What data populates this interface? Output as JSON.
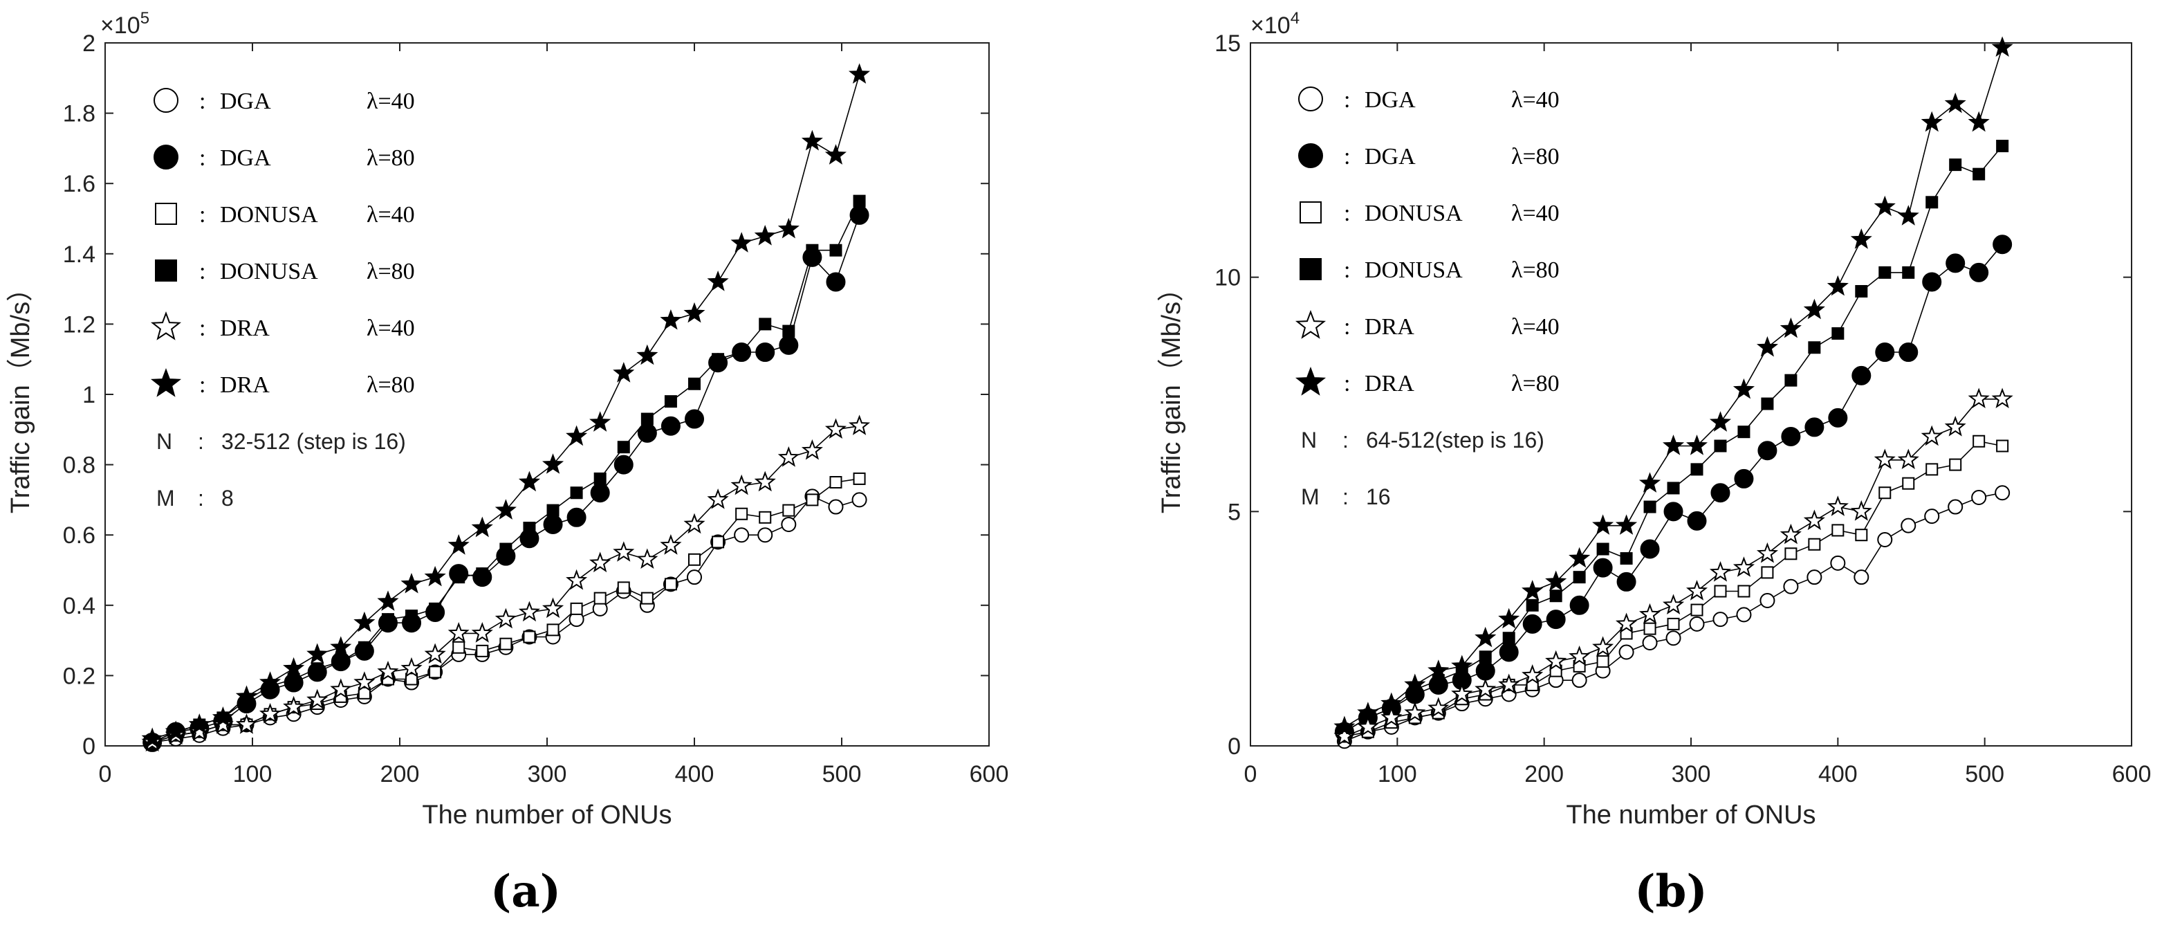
{
  "panels": [
    {
      "panel_label": "(a)",
      "multiplier": {
        "base": "×10",
        "exp": "5"
      },
      "legend": [
        {
          "marker": "circle-open",
          "sep": ":",
          "method": "DGA",
          "lambda": "λ=40"
        },
        {
          "marker": "circle-filled",
          "sep": ":",
          "method": "DGA",
          "lambda": "λ=80"
        },
        {
          "marker": "square-open",
          "sep": ":",
          "method": "DONUSA",
          "lambda": "λ=40"
        },
        {
          "marker": "square-filled",
          "sep": ":",
          "method": "DONUSA",
          "lambda": "λ=80"
        },
        {
          "marker": "star-open",
          "sep": ":",
          "method": "DRA",
          "lambda": "λ=40"
        },
        {
          "marker": "star-filled",
          "sep": ":",
          "method": "DRA",
          "lambda": "λ=80"
        }
      ],
      "params": [
        {
          "key": "N",
          "sep": ":",
          "value": "32-512 (step is 16)"
        },
        {
          "key": "M",
          "sep": ":",
          "value": "8"
        }
      ]
    },
    {
      "panel_label": "(b)",
      "multiplier": {
        "base": "×10",
        "exp": "4"
      },
      "legend": [
        {
          "marker": "circle-open",
          "sep": ":",
          "method": "DGA",
          "lambda": "λ=40"
        },
        {
          "marker": "circle-filled",
          "sep": ":",
          "method": "DGA",
          "lambda": "λ=80"
        },
        {
          "marker": "square-open",
          "sep": ":",
          "method": "DONUSA",
          "lambda": "λ=40"
        },
        {
          "marker": "square-filled",
          "sep": ":",
          "method": "DONUSA",
          "lambda": "λ=80"
        },
        {
          "marker": "star-open",
          "sep": ":",
          "method": "DRA",
          "lambda": "λ=40"
        },
        {
          "marker": "star-filled",
          "sep": ":",
          "method": "DRA",
          "lambda": "λ=80"
        }
      ],
      "params": [
        {
          "key": "N",
          "sep": ":",
          "value": "64-512(step is 16)"
        },
        {
          "key": "M",
          "sep": ":",
          "value": "16"
        }
      ]
    }
  ],
  "chart_data": [
    {
      "type": "line",
      "title": "",
      "xlabel": "The number of ONUs",
      "ylabel": "Traffic gain（Mb/s）",
      "xlim": [
        0,
        600
      ],
      "ylim": [
        0,
        2
      ],
      "y_scale_note": "×10^5",
      "xticks": [
        "0",
        "100",
        "200",
        "300",
        "400",
        "500",
        "600"
      ],
      "yticks": [
        "0",
        "0.2",
        "0.4",
        "0.6",
        "0.8",
        "1",
        "1.2",
        "1.4",
        "1.6",
        "1.8",
        "2"
      ],
      "xtick_values": [
        0,
        100,
        200,
        300,
        400,
        500,
        600
      ],
      "ytick_values": [
        0,
        0.2,
        0.4,
        0.6,
        0.8,
        1,
        1.2,
        1.4,
        1.6,
        1.8,
        2
      ],
      "grid": false,
      "legend_position": "top-left",
      "x": [
        32,
        48,
        64,
        80,
        96,
        112,
        128,
        144,
        160,
        176,
        192,
        208,
        224,
        240,
        256,
        272,
        288,
        304,
        320,
        336,
        352,
        368,
        384,
        400,
        416,
        432,
        448,
        464,
        480,
        496,
        512
      ],
      "series": [
        {
          "name": "DGA λ=40",
          "marker": "circle-open",
          "values": [
            0.01,
            0.02,
            0.03,
            0.05,
            0.06,
            0.08,
            0.09,
            0.11,
            0.13,
            0.14,
            0.19,
            0.18,
            0.21,
            0.26,
            0.26,
            0.28,
            0.31,
            0.31,
            0.36,
            0.39,
            0.44,
            0.4,
            0.46,
            0.48,
            0.58,
            0.6,
            0.6,
            0.63,
            0.71,
            0.68,
            0.7
          ]
        },
        {
          "name": "DGA λ=80",
          "marker": "circle-filled",
          "values": [
            0.01,
            0.04,
            0.05,
            0.07,
            0.12,
            0.16,
            0.18,
            0.21,
            0.24,
            0.27,
            0.35,
            0.35,
            0.38,
            0.49,
            0.48,
            0.54,
            0.59,
            0.63,
            0.65,
            0.72,
            0.8,
            0.89,
            0.91,
            0.93,
            1.09,
            1.12,
            1.12,
            1.14,
            1.39,
            1.32,
            1.51
          ]
        },
        {
          "name": "DONUSA λ=40",
          "marker": "square-open",
          "values": [
            0.01,
            0.03,
            0.04,
            0.06,
            0.06,
            0.09,
            0.11,
            0.12,
            0.14,
            0.15,
            0.19,
            0.19,
            0.21,
            0.28,
            0.27,
            0.29,
            0.31,
            0.33,
            0.39,
            0.42,
            0.45,
            0.42,
            0.46,
            0.53,
            0.58,
            0.66,
            0.65,
            0.67,
            0.7,
            0.75,
            0.76
          ]
        },
        {
          "name": "DONUSA λ=80",
          "marker": "square-filled",
          "values": [
            0.01,
            0.04,
            0.06,
            0.08,
            0.13,
            0.17,
            0.19,
            0.22,
            0.24,
            0.28,
            0.36,
            0.37,
            0.39,
            0.48,
            0.49,
            0.56,
            0.62,
            0.67,
            0.72,
            0.76,
            0.85,
            0.93,
            0.98,
            1.03,
            1.1,
            1.12,
            1.2,
            1.18,
            1.41,
            1.41,
            1.55
          ]
        },
        {
          "name": "DRA λ=40",
          "marker": "star-open",
          "values": [
            0.01,
            0.03,
            0.04,
            0.06,
            0.06,
            0.09,
            0.11,
            0.13,
            0.16,
            0.18,
            0.21,
            0.22,
            0.26,
            0.32,
            0.32,
            0.36,
            0.38,
            0.39,
            0.47,
            0.52,
            0.55,
            0.53,
            0.57,
            0.63,
            0.7,
            0.74,
            0.75,
            0.82,
            0.84,
            0.9,
            0.91
          ]
        },
        {
          "name": "DRA λ=80",
          "marker": "star-filled",
          "values": [
            0.02,
            0.04,
            0.06,
            0.08,
            0.14,
            0.18,
            0.22,
            0.26,
            0.28,
            0.35,
            0.41,
            0.46,
            0.48,
            0.57,
            0.62,
            0.67,
            0.75,
            0.8,
            0.88,
            0.92,
            1.06,
            1.11,
            1.21,
            1.23,
            1.32,
            1.43,
            1.45,
            1.47,
            1.72,
            1.68,
            1.91
          ]
        }
      ]
    },
    {
      "type": "line",
      "title": "",
      "xlabel": "The number of ONUs",
      "ylabel": "Traffic gain（Mb/s）",
      "xlim": [
        0,
        600
      ],
      "ylim": [
        0,
        15
      ],
      "y_scale_note": "×10^4",
      "xticks": [
        "0",
        "100",
        "200",
        "300",
        "400",
        "500",
        "600"
      ],
      "yticks": [
        "0",
        "5",
        "10",
        "15"
      ],
      "xtick_values": [
        0,
        100,
        200,
        300,
        400,
        500,
        600
      ],
      "ytick_values": [
        0,
        5,
        10,
        15
      ],
      "grid": false,
      "legend_position": "top-left",
      "x": [
        64,
        80,
        96,
        112,
        128,
        144,
        160,
        176,
        192,
        208,
        224,
        240,
        256,
        272,
        288,
        304,
        320,
        336,
        352,
        368,
        384,
        400,
        416,
        432,
        448,
        464,
        480,
        496,
        512
      ],
      "series": [
        {
          "name": "DGA λ=40",
          "marker": "circle-open",
          "values": [
            0.1,
            0.3,
            0.4,
            0.6,
            0.7,
            0.9,
            1.0,
            1.1,
            1.2,
            1.4,
            1.4,
            1.6,
            2.0,
            2.2,
            2.3,
            2.6,
            2.7,
            2.8,
            3.1,
            3.4,
            3.6,
            3.9,
            3.6,
            4.4,
            4.7,
            4.9,
            5.1,
            5.3,
            5.4
          ]
        },
        {
          "name": "DGA λ=80",
          "marker": "circle-filled",
          "values": [
            0.3,
            0.6,
            0.8,
            1.1,
            1.3,
            1.4,
            1.6,
            2.0,
            2.6,
            2.7,
            3.0,
            3.8,
            3.5,
            4.2,
            5.0,
            4.8,
            5.4,
            5.7,
            6.3,
            6.6,
            6.8,
            7.0,
            7.9,
            8.4,
            8.4,
            9.9,
            10.3,
            10.1,
            10.7
          ]
        },
        {
          "name": "DONUSA λ=40",
          "marker": "square-open",
          "values": [
            0.2,
            0.3,
            0.5,
            0.6,
            0.7,
            1.0,
            1.1,
            1.3,
            1.3,
            1.6,
            1.7,
            1.8,
            2.4,
            2.5,
            2.6,
            2.9,
            3.3,
            3.3,
            3.7,
            4.1,
            4.3,
            4.6,
            4.5,
            5.4,
            5.6,
            5.9,
            6.0,
            6.5,
            6.4
          ]
        },
        {
          "name": "DONUSA λ=80",
          "marker": "square-filled",
          "values": [
            0.3,
            0.6,
            0.8,
            1.2,
            1.4,
            1.6,
            1.9,
            2.3,
            3.0,
            3.2,
            3.6,
            4.2,
            4.0,
            5.1,
            5.5,
            5.9,
            6.4,
            6.7,
            7.3,
            7.8,
            8.5,
            8.8,
            9.7,
            10.1,
            10.1,
            11.6,
            12.4,
            12.2,
            12.8
          ]
        },
        {
          "name": "DRA λ=40",
          "marker": "star-open",
          "values": [
            0.2,
            0.4,
            0.6,
            0.7,
            0.8,
            1.1,
            1.2,
            1.3,
            1.5,
            1.8,
            1.9,
            2.1,
            2.6,
            2.8,
            3.0,
            3.3,
            3.7,
            3.8,
            4.1,
            4.5,
            4.8,
            5.1,
            5.0,
            6.1,
            6.1,
            6.6,
            6.8,
            7.4,
            7.4
          ]
        },
        {
          "name": "DRA λ=80",
          "marker": "star-filled",
          "values": [
            0.4,
            0.7,
            0.9,
            1.3,
            1.6,
            1.7,
            2.3,
            2.7,
            3.3,
            3.5,
            4.0,
            4.7,
            4.7,
            5.6,
            6.4,
            6.4,
            6.9,
            7.6,
            8.5,
            8.9,
            9.3,
            9.8,
            10.8,
            11.5,
            11.3,
            13.3,
            13.7,
            13.3,
            14.9
          ]
        }
      ]
    }
  ]
}
